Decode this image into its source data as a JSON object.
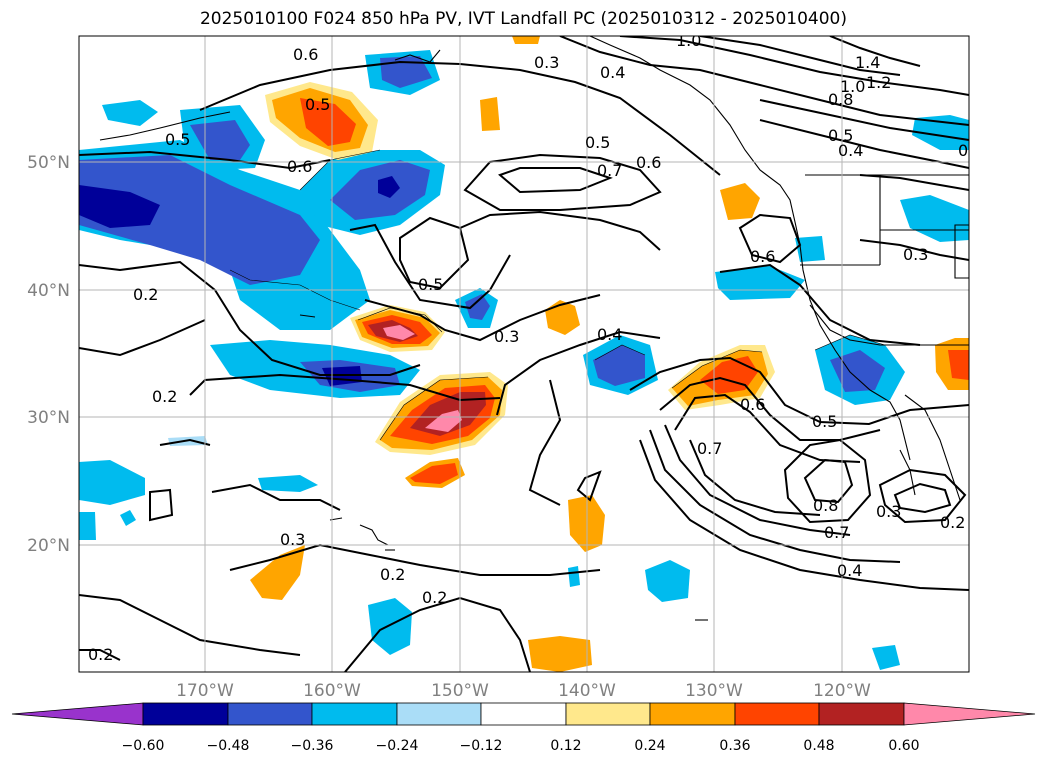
{
  "title": "2025010100 F024 850 hPa PV, IVT Landfall PC (2025010312 - 2025010400)",
  "axes": {
    "lat_ticks": [
      "50°N",
      "40°N",
      "30°N",
      "20°N"
    ],
    "lon_ticks": [
      "170°W",
      "160°W",
      "150°W",
      "140°W",
      "130°W",
      "120°W"
    ]
  },
  "colorbar": {
    "colors": [
      "#9933cc",
      "#000099",
      "#3355cc",
      "#00bbee",
      "#aaddf7",
      "#ffffff",
      "#ffe88c",
      "#ffa500",
      "#ff4400",
      "#b22222",
      "#ff88aa"
    ],
    "labels": [
      "−0.60",
      "−0.48",
      "−0.36",
      "−0.24",
      "−0.12",
      "0.12",
      "0.24",
      "0.36",
      "0.48",
      "0.60"
    ]
  },
  "contour_labels": [
    "0.6",
    "0.5",
    "0.5",
    "0.6",
    "0.3",
    "0.4",
    "1.0",
    "1.4",
    "1.2",
    "1.0",
    "0.8",
    "0.5",
    "0.4",
    "0",
    "0.5",
    "0.7",
    "0.6",
    "0.6",
    "0.3",
    "0.5",
    "0.2",
    "0.3",
    "0.4",
    "0.2",
    "0.6",
    "0.7",
    "0.5",
    "0.8",
    "0.7",
    "0.3",
    "0.2",
    "0.4",
    "0.3",
    "0.2",
    "0.2",
    "0.2"
  ]
}
